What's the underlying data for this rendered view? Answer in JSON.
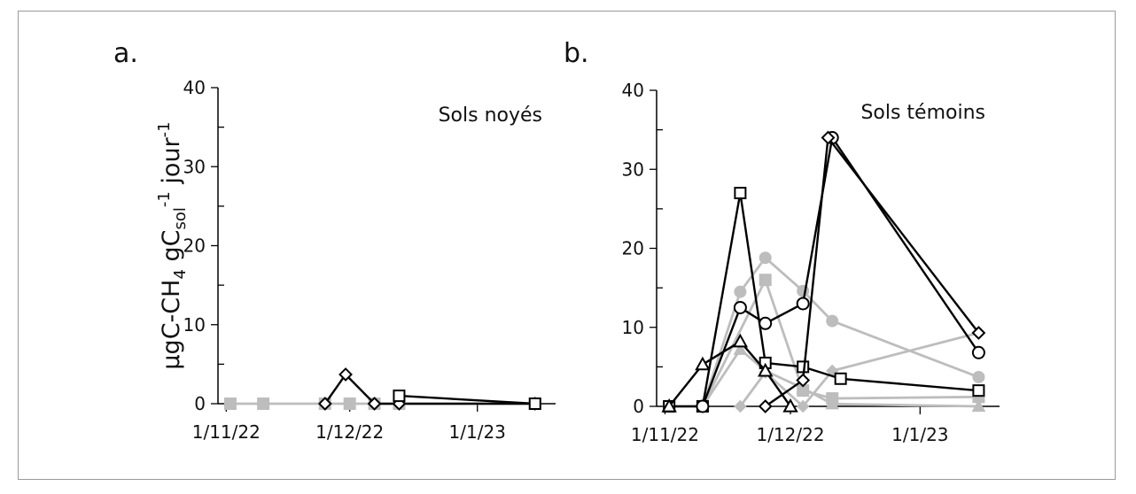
{
  "chart_data": [
    {
      "panel": "a.",
      "type": "line",
      "annotation": "Sols noyés",
      "ylabel": "µgC-CH4 gCsol-1 jour-1",
      "ylim": [
        0,
        40
      ],
      "yticks": [
        0,
        10,
        20,
        30,
        40
      ],
      "xlim": [
        "2022-10-30",
        "2023-01-20"
      ],
      "xticks": [
        {
          "date": "2022-11-01",
          "label": "1/11/22"
        },
        {
          "date": "2022-12-01",
          "label": "1/12/22"
        },
        {
          "date": "2023-01-01",
          "label": "1/1/23"
        }
      ],
      "series": [
        {
          "color": "#000000",
          "marker": "diamond-open",
          "points": [
            [
              "2022-11-25",
              0
            ],
            [
              "2022-11-30",
              3.7
            ],
            [
              "2022-12-07",
              0
            ],
            [
              "2022-12-13",
              0
            ],
            [
              "2023-01-15",
              0
            ]
          ]
        },
        {
          "color": "#000000",
          "marker": "square-open",
          "points": [
            [
              "2022-12-13",
              1.0
            ],
            [
              "2023-01-15",
              0
            ]
          ]
        },
        {
          "color": "#bdbdbd",
          "marker": "square-filled",
          "points": [
            [
              "2022-11-02",
              0
            ],
            [
              "2022-11-10",
              0
            ],
            [
              "2022-11-25",
              0
            ],
            [
              "2022-12-01",
              0
            ],
            [
              "2022-12-07",
              0
            ],
            [
              "2022-12-13",
              0
            ],
            [
              "2023-01-15",
              0
            ]
          ]
        }
      ]
    },
    {
      "panel": "b.",
      "type": "line",
      "annotation": "Sols témoins",
      "ylim": [
        0,
        40
      ],
      "yticks": [
        0,
        10,
        20,
        30,
        40
      ],
      "xlim": [
        "2022-10-30",
        "2023-01-20"
      ],
      "xticks": [
        {
          "date": "2022-11-01",
          "label": "1/11/22"
        },
        {
          "date": "2022-12-01",
          "label": "1/12/22"
        },
        {
          "date": "2023-01-01",
          "label": "1/1/23"
        }
      ],
      "series": [
        {
          "color": "#000000",
          "marker": "square-open",
          "points": [
            [
              "2022-11-02",
              0
            ],
            [
              "2022-11-10",
              0
            ],
            [
              "2022-11-19",
              27
            ],
            [
              "2022-11-25",
              5.5
            ],
            [
              "2022-12-04",
              5
            ],
            [
              "2022-12-13",
              3.5
            ],
            [
              "2023-01-15",
              2
            ]
          ]
        },
        {
          "color": "#000000",
          "marker": "circle-open",
          "points": [
            [
              "2022-11-10",
              0
            ],
            [
              "2022-11-19",
              12.5
            ],
            [
              "2022-11-25",
              10.5
            ],
            [
              "2022-12-04",
              13
            ],
            [
              "2022-12-11",
              34
            ],
            [
              "2023-01-15",
              6.8
            ]
          ]
        },
        {
          "color": "#000000",
          "marker": "triangle-open",
          "points": [
            [
              "2022-11-02",
              0
            ],
            [
              "2022-11-10",
              5.3
            ],
            [
              "2022-11-19",
              8.2
            ],
            [
              "2022-11-25",
              4.5
            ],
            [
              "2022-12-01",
              0
            ]
          ]
        },
        {
          "color": "#000000",
          "marker": "diamond-open",
          "points": [
            [
              "2022-11-25",
              0
            ],
            [
              "2022-12-04",
              3.3
            ],
            [
              "2022-12-10",
              34
            ],
            [
              "2023-01-15",
              9.3
            ]
          ]
        },
        {
          "color": "#bdbdbd",
          "marker": "circle-filled",
          "points": [
            [
              "2022-11-10",
              0
            ],
            [
              "2022-11-19",
              14.5
            ],
            [
              "2022-11-25",
              18.8
            ],
            [
              "2022-12-04",
              14.6
            ],
            [
              "2022-12-11",
              10.8
            ],
            [
              "2023-01-15",
              3.7
            ]
          ]
        },
        {
          "color": "#bdbdbd",
          "marker": "square-filled",
          "points": [
            [
              "2022-11-02",
              0
            ],
            [
              "2022-11-10",
              0
            ],
            [
              "2022-11-25",
              16
            ],
            [
              "2022-12-04",
              2
            ],
            [
              "2022-12-11",
              1
            ],
            [
              "2023-01-15",
              1.2
            ]
          ]
        },
        {
          "color": "#bdbdbd",
          "marker": "triangle-filled",
          "points": [
            [
              "2022-11-10",
              0
            ],
            [
              "2022-11-19",
              7.2
            ],
            [
              "2022-11-25",
              4.5
            ],
            [
              "2022-12-04",
              2.3
            ],
            [
              "2022-12-11",
              0.3
            ],
            [
              "2023-01-15",
              0
            ]
          ]
        },
        {
          "color": "#bdbdbd",
          "marker": "diamond-filled",
          "points": [
            [
              "2022-11-19",
              0
            ],
            [
              "2022-11-25",
              4.3
            ],
            [
              "2022-12-04",
              0
            ],
            [
              "2022-12-11",
              4.5
            ],
            [
              "2023-01-15",
              9.3
            ]
          ]
        }
      ]
    }
  ]
}
